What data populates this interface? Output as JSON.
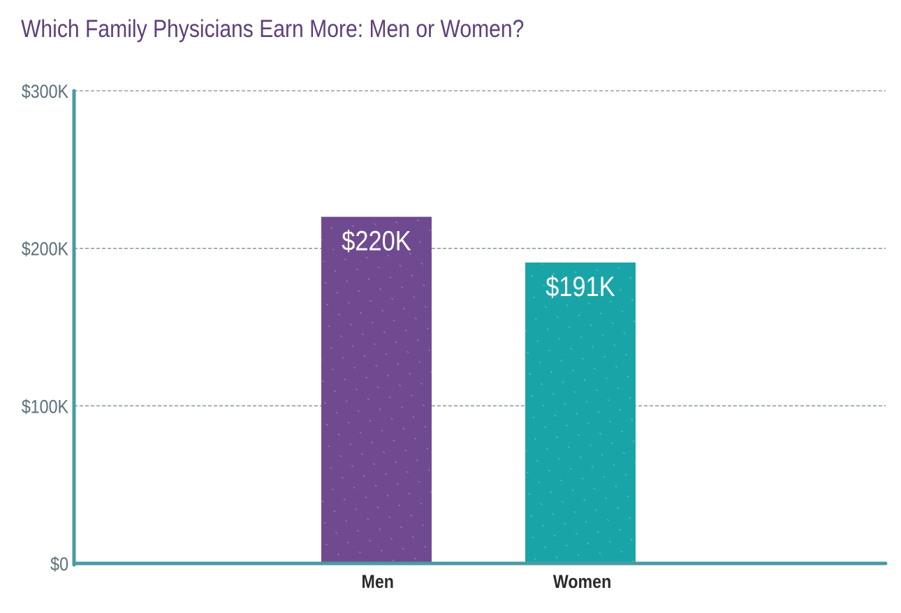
{
  "chart_data": {
    "type": "bar",
    "title": "Which Family Physicians Earn More: Men or Women?",
    "categories": [
      "Men",
      "Women"
    ],
    "values": [
      220,
      191
    ],
    "data_labels": [
      "$220K",
      "$191K"
    ],
    "unit": "thousand USD",
    "ylim": [
      0,
      300
    ],
    "yticks": [
      0,
      100,
      200,
      300
    ],
    "ytick_labels": [
      "$0",
      "$100K",
      "$200K",
      "$300K"
    ],
    "xlabel": "",
    "ylabel": "",
    "grid": true,
    "legend": "none",
    "colors": [
      "#6f4a90",
      "#19a5a8"
    ],
    "axis_color": "#4a9aa3",
    "grid_color": "#7d8e98"
  }
}
